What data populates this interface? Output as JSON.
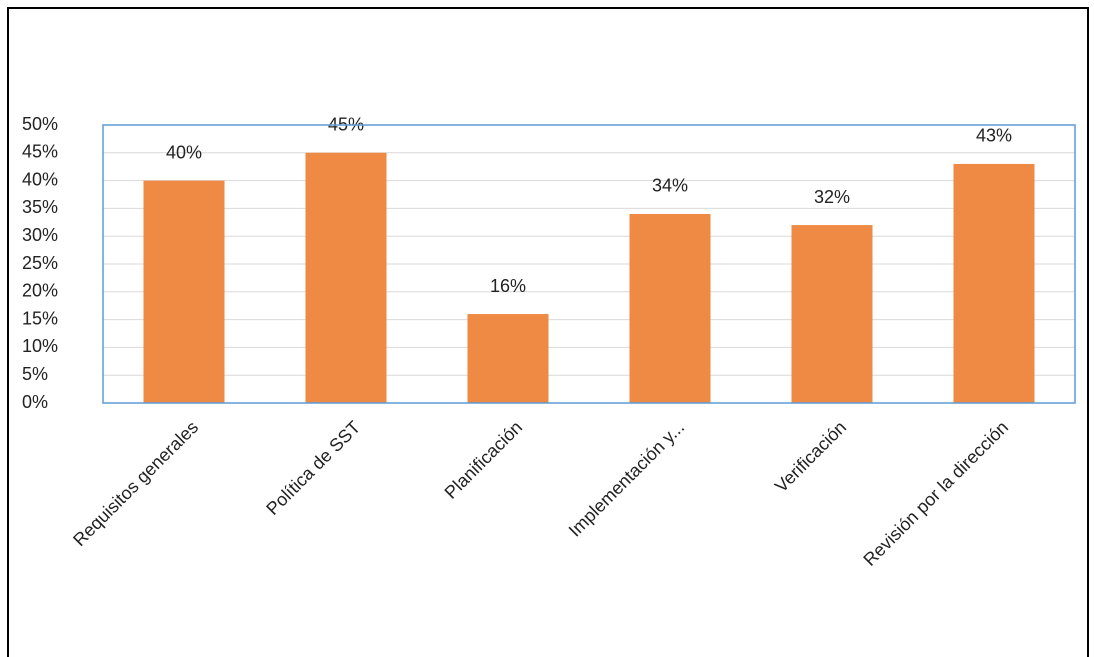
{
  "chart_data": {
    "type": "bar",
    "categories": [
      "Requisitos generales",
      "Política  de SST",
      "Planificación",
      "Implementación y...",
      "Verificación",
      "Revisión por la dirección"
    ],
    "values": [
      40,
      45,
      16,
      34,
      32,
      43
    ],
    "value_labels": [
      "40%",
      "45%",
      "16%",
      "34%",
      "32%",
      "43%"
    ],
    "color": "#ef8a44",
    "ylim": [
      0,
      50
    ],
    "yticks": [
      {
        "value": 0,
        "label": "0%"
      },
      {
        "value": 5,
        "label": "5%"
      },
      {
        "value": 10,
        "label": "10%"
      },
      {
        "value": 15,
        "label": "15%"
      },
      {
        "value": 20,
        "label": "20%"
      },
      {
        "value": 25,
        "label": "25%"
      },
      {
        "value": 30,
        "label": "30%"
      },
      {
        "value": 35,
        "label": "35%"
      },
      {
        "value": 40,
        "label": "40%"
      },
      {
        "value": 45,
        "label": "45%"
      },
      {
        "value": 50,
        "label": "50%"
      }
    ],
    "grid": true
  }
}
